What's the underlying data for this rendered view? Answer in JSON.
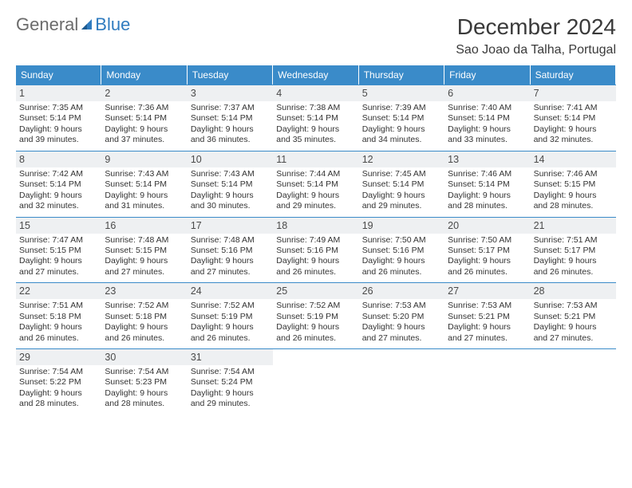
{
  "logo": {
    "word1": "General",
    "word2": "Blue"
  },
  "title": "December 2024",
  "location": "Sao Joao da Talha, Portugal",
  "colors": {
    "header_bg": "#3a8bc9",
    "header_text": "#ffffff",
    "daynum_bg": "#eef0f2",
    "border": "#3a8bc9",
    "logo_grey": "#6b6b6b",
    "logo_blue": "#2f7bbf",
    "text": "#333333"
  },
  "days_of_week": [
    "Sunday",
    "Monday",
    "Tuesday",
    "Wednesday",
    "Thursday",
    "Friday",
    "Saturday"
  ],
  "grid": {
    "columns": 7,
    "rows": 5,
    "start_offset": 0,
    "total_days": 31
  },
  "days": [
    {
      "n": "1",
      "sunrise": "Sunrise: 7:35 AM",
      "sunset": "Sunset: 5:14 PM",
      "d1": "Daylight: 9 hours",
      "d2": "and 39 minutes."
    },
    {
      "n": "2",
      "sunrise": "Sunrise: 7:36 AM",
      "sunset": "Sunset: 5:14 PM",
      "d1": "Daylight: 9 hours",
      "d2": "and 37 minutes."
    },
    {
      "n": "3",
      "sunrise": "Sunrise: 7:37 AM",
      "sunset": "Sunset: 5:14 PM",
      "d1": "Daylight: 9 hours",
      "d2": "and 36 minutes."
    },
    {
      "n": "4",
      "sunrise": "Sunrise: 7:38 AM",
      "sunset": "Sunset: 5:14 PM",
      "d1": "Daylight: 9 hours",
      "d2": "and 35 minutes."
    },
    {
      "n": "5",
      "sunrise": "Sunrise: 7:39 AM",
      "sunset": "Sunset: 5:14 PM",
      "d1": "Daylight: 9 hours",
      "d2": "and 34 minutes."
    },
    {
      "n": "6",
      "sunrise": "Sunrise: 7:40 AM",
      "sunset": "Sunset: 5:14 PM",
      "d1": "Daylight: 9 hours",
      "d2": "and 33 minutes."
    },
    {
      "n": "7",
      "sunrise": "Sunrise: 7:41 AM",
      "sunset": "Sunset: 5:14 PM",
      "d1": "Daylight: 9 hours",
      "d2": "and 32 minutes."
    },
    {
      "n": "8",
      "sunrise": "Sunrise: 7:42 AM",
      "sunset": "Sunset: 5:14 PM",
      "d1": "Daylight: 9 hours",
      "d2": "and 32 minutes."
    },
    {
      "n": "9",
      "sunrise": "Sunrise: 7:43 AM",
      "sunset": "Sunset: 5:14 PM",
      "d1": "Daylight: 9 hours",
      "d2": "and 31 minutes."
    },
    {
      "n": "10",
      "sunrise": "Sunrise: 7:43 AM",
      "sunset": "Sunset: 5:14 PM",
      "d1": "Daylight: 9 hours",
      "d2": "and 30 minutes."
    },
    {
      "n": "11",
      "sunrise": "Sunrise: 7:44 AM",
      "sunset": "Sunset: 5:14 PM",
      "d1": "Daylight: 9 hours",
      "d2": "and 29 minutes."
    },
    {
      "n": "12",
      "sunrise": "Sunrise: 7:45 AM",
      "sunset": "Sunset: 5:14 PM",
      "d1": "Daylight: 9 hours",
      "d2": "and 29 minutes."
    },
    {
      "n": "13",
      "sunrise": "Sunrise: 7:46 AM",
      "sunset": "Sunset: 5:14 PM",
      "d1": "Daylight: 9 hours",
      "d2": "and 28 minutes."
    },
    {
      "n": "14",
      "sunrise": "Sunrise: 7:46 AM",
      "sunset": "Sunset: 5:15 PM",
      "d1": "Daylight: 9 hours",
      "d2": "and 28 minutes."
    },
    {
      "n": "15",
      "sunrise": "Sunrise: 7:47 AM",
      "sunset": "Sunset: 5:15 PM",
      "d1": "Daylight: 9 hours",
      "d2": "and 27 minutes."
    },
    {
      "n": "16",
      "sunrise": "Sunrise: 7:48 AM",
      "sunset": "Sunset: 5:15 PM",
      "d1": "Daylight: 9 hours",
      "d2": "and 27 minutes."
    },
    {
      "n": "17",
      "sunrise": "Sunrise: 7:48 AM",
      "sunset": "Sunset: 5:16 PM",
      "d1": "Daylight: 9 hours",
      "d2": "and 27 minutes."
    },
    {
      "n": "18",
      "sunrise": "Sunrise: 7:49 AM",
      "sunset": "Sunset: 5:16 PM",
      "d1": "Daylight: 9 hours",
      "d2": "and 26 minutes."
    },
    {
      "n": "19",
      "sunrise": "Sunrise: 7:50 AM",
      "sunset": "Sunset: 5:16 PM",
      "d1": "Daylight: 9 hours",
      "d2": "and 26 minutes."
    },
    {
      "n": "20",
      "sunrise": "Sunrise: 7:50 AM",
      "sunset": "Sunset: 5:17 PM",
      "d1": "Daylight: 9 hours",
      "d2": "and 26 minutes."
    },
    {
      "n": "21",
      "sunrise": "Sunrise: 7:51 AM",
      "sunset": "Sunset: 5:17 PM",
      "d1": "Daylight: 9 hours",
      "d2": "and 26 minutes."
    },
    {
      "n": "22",
      "sunrise": "Sunrise: 7:51 AM",
      "sunset": "Sunset: 5:18 PM",
      "d1": "Daylight: 9 hours",
      "d2": "and 26 minutes."
    },
    {
      "n": "23",
      "sunrise": "Sunrise: 7:52 AM",
      "sunset": "Sunset: 5:18 PM",
      "d1": "Daylight: 9 hours",
      "d2": "and 26 minutes."
    },
    {
      "n": "24",
      "sunrise": "Sunrise: 7:52 AM",
      "sunset": "Sunset: 5:19 PM",
      "d1": "Daylight: 9 hours",
      "d2": "and 26 minutes."
    },
    {
      "n": "25",
      "sunrise": "Sunrise: 7:52 AM",
      "sunset": "Sunset: 5:19 PM",
      "d1": "Daylight: 9 hours",
      "d2": "and 26 minutes."
    },
    {
      "n": "26",
      "sunrise": "Sunrise: 7:53 AM",
      "sunset": "Sunset: 5:20 PM",
      "d1": "Daylight: 9 hours",
      "d2": "and 27 minutes."
    },
    {
      "n": "27",
      "sunrise": "Sunrise: 7:53 AM",
      "sunset": "Sunset: 5:21 PM",
      "d1": "Daylight: 9 hours",
      "d2": "and 27 minutes."
    },
    {
      "n": "28",
      "sunrise": "Sunrise: 7:53 AM",
      "sunset": "Sunset: 5:21 PM",
      "d1": "Daylight: 9 hours",
      "d2": "and 27 minutes."
    },
    {
      "n": "29",
      "sunrise": "Sunrise: 7:54 AM",
      "sunset": "Sunset: 5:22 PM",
      "d1": "Daylight: 9 hours",
      "d2": "and 28 minutes."
    },
    {
      "n": "30",
      "sunrise": "Sunrise: 7:54 AM",
      "sunset": "Sunset: 5:23 PM",
      "d1": "Daylight: 9 hours",
      "d2": "and 28 minutes."
    },
    {
      "n": "31",
      "sunrise": "Sunrise: 7:54 AM",
      "sunset": "Sunset: 5:24 PM",
      "d1": "Daylight: 9 hours",
      "d2": "and 29 minutes."
    }
  ]
}
